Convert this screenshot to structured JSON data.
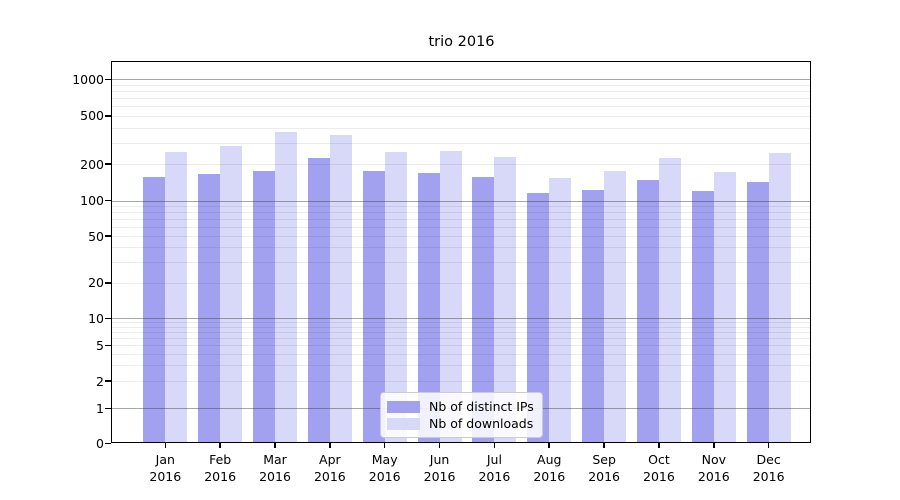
{
  "chart_data": {
    "type": "bar",
    "title": "trio 2016",
    "x_labels": [
      "Jan",
      "Feb",
      "Mar",
      "Apr",
      "May",
      "Jun",
      "Jul",
      "Aug",
      "Sep",
      "Oct",
      "Nov",
      "Dec"
    ],
    "x_sublabel": "2016",
    "series": [
      {
        "name": "Nb of distinct IPs",
        "color": "#a1a1f0",
        "values": [
          158,
          166,
          176,
          225,
          176,
          168,
          158,
          115,
          122,
          148,
          121,
          143
        ]
      },
      {
        "name": "Nb of downloads",
        "color": "#d8d8f8",
        "values": [
          250,
          284,
          366,
          350,
          253,
          256,
          228,
          155,
          177,
          224,
          172,
          248
        ]
      }
    ],
    "y_ticks": [
      "0",
      "1",
      "2",
      "5",
      "10",
      "20",
      "50",
      "100",
      "200",
      "500",
      "1000"
    ],
    "y_scale": "symlog",
    "ylim": [
      0,
      1380
    ],
    "grid": "on",
    "legend_position": "lower center"
  }
}
